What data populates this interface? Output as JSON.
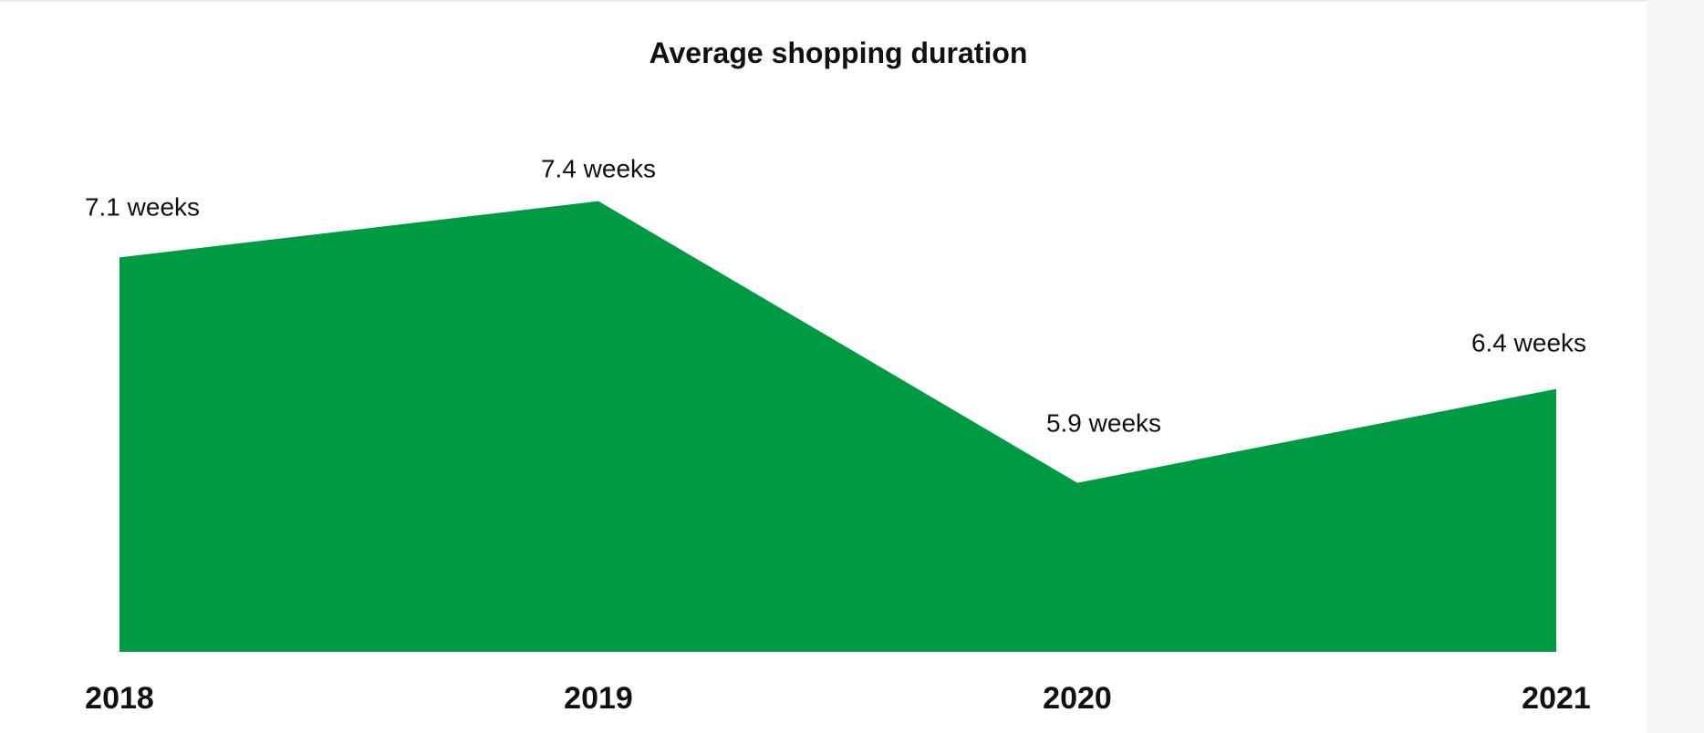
{
  "chart_data": {
    "type": "area",
    "title": "Average shopping duration",
    "xlabel": "",
    "ylabel": "",
    "categories": [
      "2018",
      "2019",
      "2020",
      "2021"
    ],
    "values": [
      7.1,
      7.4,
      5.9,
      6.4
    ],
    "data_labels": [
      "7.1 weeks",
      "7.4 weeks",
      "5.9 weeks",
      "6.4 weeks"
    ],
    "ylim": [
      5,
      8
    ],
    "grid": false,
    "legend": "none",
    "colors": {
      "fill": "#009944",
      "text": "#111111",
      "side_panel": "#f7f7f7"
    }
  }
}
